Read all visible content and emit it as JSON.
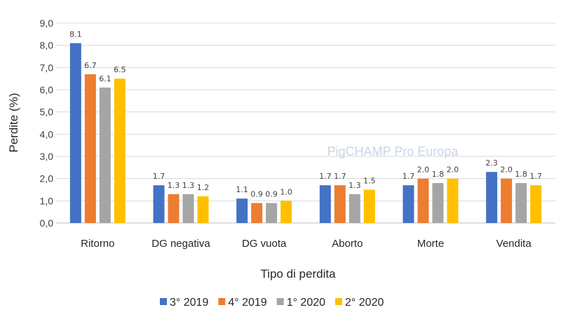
{
  "chart_data": {
    "type": "bar",
    "title": "",
    "xlabel": "Tipo di perdita",
    "ylabel": "Perdite (%)",
    "ylim": [
      0,
      9
    ],
    "yticks": [
      "0,0",
      "1,0",
      "2,0",
      "3,0",
      "4,0",
      "5,0",
      "6,0",
      "7,0",
      "8,0",
      "9,0"
    ],
    "grid": true,
    "legend_position": "bottom",
    "categories": [
      "Ritorno",
      "DG negativa",
      "DG vuota",
      "Aborto",
      "Morte",
      "Vendita"
    ],
    "series": [
      {
        "name": "3° 2019",
        "color": "#4472c4",
        "values": [
          8.1,
          1.7,
          1.1,
          1.7,
          1.7,
          2.3
        ]
      },
      {
        "name": "4° 2019",
        "color": "#ed7d31",
        "values": [
          6.7,
          1.3,
          0.9,
          1.7,
          2.0,
          2.0
        ]
      },
      {
        "name": "1° 2020",
        "color": "#a5a5a5",
        "values": [
          6.1,
          1.3,
          0.9,
          1.3,
          1.8,
          1.8
        ]
      },
      {
        "name": "2° 2020",
        "color": "#ffc000",
        "values": [
          6.5,
          1.2,
          1.0,
          1.5,
          2.0,
          1.7
        ]
      }
    ]
  },
  "watermark": "PigCHAMP Pro Europa"
}
